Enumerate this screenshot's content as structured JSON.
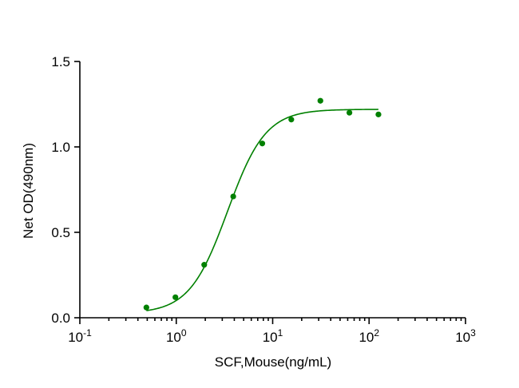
{
  "chart_data": {
    "type": "scatter",
    "title": "",
    "xlabel": "SCF,Mouse(ng/mL)",
    "ylabel": "Net OD(490nm)",
    "x_scale": "log10",
    "xlim": [
      0.1,
      1000
    ],
    "ylim": [
      0,
      1.5
    ],
    "x_ticks": [
      {
        "value": 0.1,
        "base": "10",
        "exp": "-1"
      },
      {
        "value": 1,
        "base": "10",
        "exp": "0"
      },
      {
        "value": 10,
        "base": "10",
        "exp": "1"
      },
      {
        "value": 100,
        "base": "10",
        "exp": "2"
      },
      {
        "value": 1000,
        "base": "10",
        "exp": "3"
      }
    ],
    "y_ticks": [
      {
        "value": 0,
        "label": "0.0"
      },
      {
        "value": 0.5,
        "label": "0.5"
      },
      {
        "value": 1.0,
        "label": "1.0"
      },
      {
        "value": 1.5,
        "label": "1.5"
      }
    ],
    "grid": false,
    "color": "#008000",
    "series": [
      {
        "points": [
          {
            "x": 0.49,
            "y": 0.06
          },
          {
            "x": 0.98,
            "y": 0.12
          },
          {
            "x": 1.95,
            "y": 0.31
          },
          {
            "x": 3.9,
            "y": 0.71
          },
          {
            "x": 7.8,
            "y": 1.02
          },
          {
            "x": 15.6,
            "y": 1.16
          },
          {
            "x": 31.25,
            "y": 1.27
          },
          {
            "x": 62.5,
            "y": 1.2
          },
          {
            "x": 125,
            "y": 1.19
          }
        ],
        "fit": {
          "model": "4PL",
          "bottom": 0.025,
          "top": 1.22,
          "ec50": 3.4,
          "hill": 2.2,
          "x_range": [
            0.49,
            125
          ]
        }
      }
    ]
  }
}
